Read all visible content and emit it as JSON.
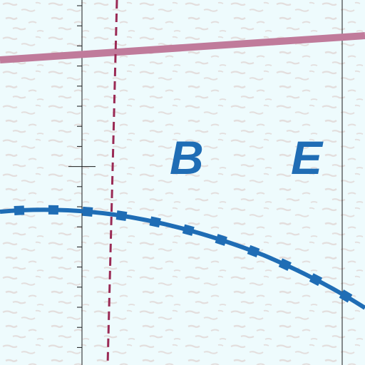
{
  "map": {
    "labels": [
      {
        "id": "B",
        "text": "B"
      },
      {
        "id": "E",
        "text": "E"
      }
    ]
  },
  "colors": {
    "background": "#eefbfd",
    "texture": "#e3dedd",
    "grid_line": "#1a1a1a",
    "road": "#c07b9b",
    "boundary_dashed": "#9a2a55",
    "river": "#1f6db5",
    "label": "#1f6db5"
  }
}
